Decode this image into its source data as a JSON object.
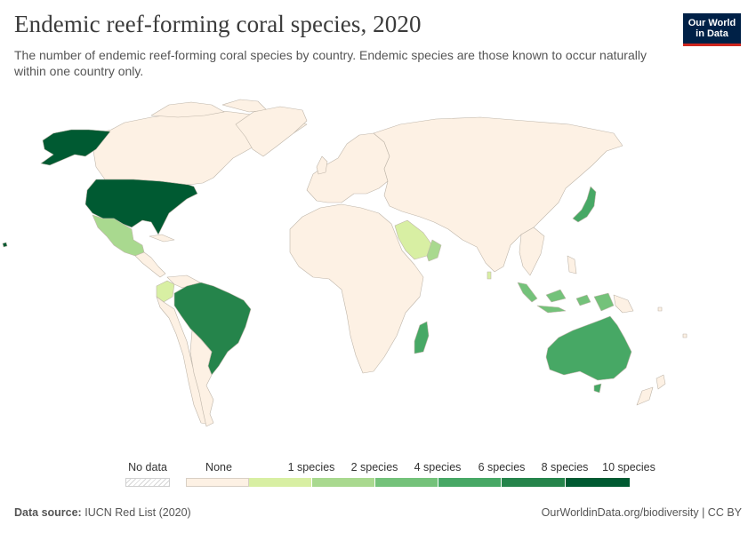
{
  "title": "Endemic reef-forming coral species, 2020",
  "subtitle": "The number of endemic reef-forming coral species by country. Endemic species are those known to occur naturally within one country only.",
  "logo": {
    "line1": "Our World",
    "line2": "in Data"
  },
  "colors": {
    "none": "#fdf1e4",
    "border": "#bfb6aa",
    "c1": "#d8efa3",
    "c2": "#a9d98f",
    "c4": "#74c27a",
    "c6": "#47a865",
    "c8": "#25844b",
    "c10": "#005a32",
    "nodata_hatch": "#cfcfcf"
  },
  "legend": {
    "nodata_label": "No data",
    "bins": [
      {
        "label": "None",
        "color": "#fdf1e4"
      },
      {
        "label": "1 species",
        "color": "#d8efa3"
      },
      {
        "label": "2 species",
        "color": "#a9d98f"
      },
      {
        "label": "4 species",
        "color": "#74c27a"
      },
      {
        "label": "6 species",
        "color": "#47a865"
      },
      {
        "label": "8 species",
        "color": "#25844b"
      },
      {
        "label": "10 species",
        "color": "#005a32"
      }
    ]
  },
  "map_data": {
    "United States": "10 species",
    "Mexico": "2 species",
    "Brazil": "8 species",
    "Colombia": "1 species",
    "Saudi Arabia": "1 species",
    "Oman": "2 species",
    "Japan": "6 species",
    "Indonesia": "4 species",
    "Madagascar": "4 species",
    "Australia": "6 species"
  },
  "footer": {
    "source_label": "Data source:",
    "source_value": "IUCN Red List (2020)",
    "right": "OurWorldinData.org/biodiversity | CC BY"
  }
}
